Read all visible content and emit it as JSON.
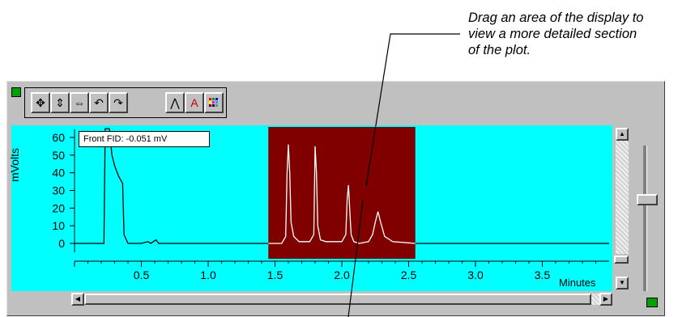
{
  "callout": {
    "text": "Drag an area of the display to\nview a more detailed section\nof the plot."
  },
  "toolbar": {
    "buttons": [
      {
        "name": "pan-button",
        "icon": "move-arrows-icon"
      },
      {
        "name": "vertical-zoom-button",
        "icon": "vertical-arrows-icon"
      },
      {
        "name": "horizontal-zoom-button",
        "icon": "horizontal-arrows-icon"
      },
      {
        "name": "undo-zoom-button",
        "icon": "rotate-left-icon"
      },
      {
        "name": "redo-zoom-button",
        "icon": "rotate-right-icon"
      },
      {
        "name": "peak-button",
        "icon": "peak-icon"
      },
      {
        "name": "font-button",
        "icon": "font-a-icon"
      },
      {
        "name": "color-button",
        "icon": "color-grid-icon"
      }
    ]
  },
  "tooltip": {
    "text": "Front FID: -0.051 mV"
  },
  "colors": {
    "plot_background": "#00ffff",
    "selection": "#800000",
    "trace_normal": "#000000",
    "trace_selected": "#ffffff",
    "window": "#c0c0c0"
  },
  "chart_data": {
    "type": "line",
    "ylabel": "mVolts",
    "xlabel": "Minutes",
    "xlim": [
      0,
      4.0
    ],
    "ylim": [
      -5,
      65
    ],
    "y_ticks": [
      "60",
      "50",
      "40",
      "30",
      "20",
      "10",
      "0"
    ],
    "x_ticks": [
      "0.5",
      "1.0",
      "1.5",
      "2.0",
      "2.5",
      "3.0",
      "3.5"
    ],
    "selection_range": [
      1.45,
      2.55
    ],
    "series": [
      {
        "x": [
          0.0,
          0.22,
          0.23,
          0.26,
          0.28,
          0.3,
          0.33,
          0.36,
          0.37,
          0.4,
          0.5,
          0.55,
          0.57,
          0.59,
          0.61,
          0.63,
          0.65,
          0.8,
          1.45,
          1.55,
          1.58,
          1.59,
          1.6,
          1.61,
          1.62,
          1.64,
          1.68,
          1.76,
          1.79,
          1.8,
          1.81,
          1.82,
          1.84,
          1.88,
          2.0,
          2.03,
          2.04,
          2.05,
          2.06,
          2.07,
          2.09,
          2.13,
          2.2,
          2.23,
          2.25,
          2.27,
          2.29,
          2.32,
          2.38,
          2.55,
          4.0
        ],
        "y": [
          0,
          0,
          65,
          65,
          50,
          44,
          38,
          34,
          5,
          0,
          0,
          1,
          0,
          1,
          2,
          0,
          0,
          0,
          0,
          0,
          4,
          40,
          56,
          40,
          12,
          4,
          1,
          1,
          5,
          55,
          40,
          10,
          2,
          1,
          1,
          5,
          25,
          33,
          18,
          5,
          1,
          0,
          1,
          5,
          12,
          18,
          12,
          4,
          1,
          0,
          0
        ]
      }
    ]
  }
}
